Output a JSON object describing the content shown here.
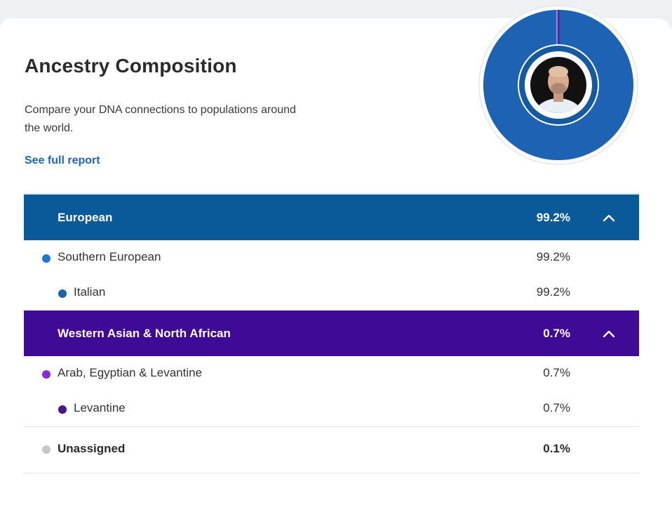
{
  "header": {
    "title": "Ancestry Composition",
    "description": "Compare your DNA connections to populations around the world.",
    "report_link": "See full report"
  },
  "donut": {
    "outer_ring_color": "#1e63b3",
    "inner_ring_color": "#155aa1",
    "accent_color": "#5b1ea3",
    "avatar": "profile-photo"
  },
  "groups": [
    {
      "label": "European",
      "percent": "99.2%",
      "color": "#0a5a99",
      "expanded": true,
      "toggle_icon": "chevron-up-icon",
      "rows": [
        {
          "label": "Southern European",
          "percent": "99.2%",
          "level": 1,
          "color": "#1f77d0"
        },
        {
          "label": "Italian",
          "percent": "99.2%",
          "level": 2,
          "color": "#1963b3"
        }
      ]
    },
    {
      "label": "Western Asian & North African",
      "percent": "0.7%",
      "color": "#3f0a96",
      "expanded": true,
      "toggle_icon": "chevron-up-icon",
      "rows": [
        {
          "label": "Arab, Egyptian & Levantine",
          "percent": "0.7%",
          "level": 1,
          "color": "#8a2be2"
        },
        {
          "label": "Levantine",
          "percent": "0.7%",
          "level": 2,
          "color": "#4a148c"
        }
      ]
    }
  ],
  "unassigned": {
    "label": "Unassigned",
    "percent": "0.1%",
    "color": "#c6c6c6"
  }
}
